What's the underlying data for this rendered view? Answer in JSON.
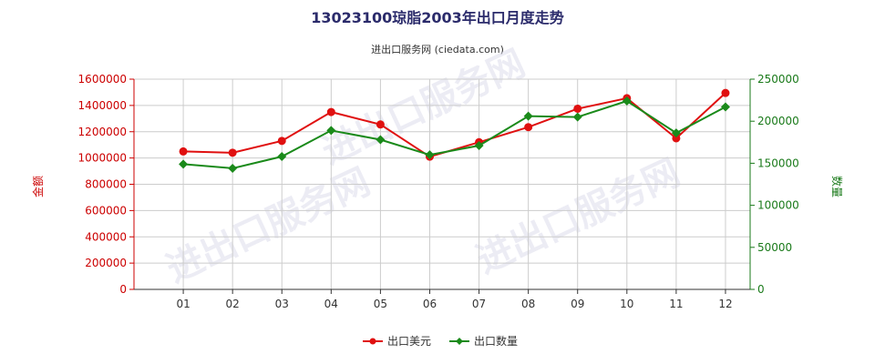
{
  "chart_data": {
    "type": "line",
    "title": "13023100琼脂2003年出口月度走势",
    "subtitle": "进出口服务网 (ciedata.com)",
    "categories": [
      "01",
      "02",
      "03",
      "04",
      "05",
      "06",
      "07",
      "08",
      "09",
      "10",
      "11",
      "12"
    ],
    "y_left_label": "金额",
    "y_right_label": "数量",
    "y_left_ticks": [
      "0",
      "200000",
      "400000",
      "600000",
      "800000",
      "1000000",
      "1200000",
      "1400000",
      "1600000"
    ],
    "y_right_ticks": [
      "0",
      "50000",
      "100000",
      "150000",
      "200000",
      "250000"
    ],
    "ylim_left": [
      0,
      1600000
    ],
    "ylim_right": [
      0,
      250000
    ],
    "grid": true,
    "legend_position": "bottom-center",
    "series": [
      {
        "name": "出口美元",
        "axis": "left",
        "color": "#e01010",
        "marker": "circle",
        "values": [
          1050000,
          1040000,
          1130000,
          1350000,
          1255000,
          1010000,
          1120000,
          1235000,
          1375000,
          1455000,
          1150000,
          1495000
        ]
      },
      {
        "name": "出口数量",
        "axis": "right",
        "color": "#1a8a1a",
        "marker": "diamond",
        "values": [
          149000,
          144000,
          158000,
          189000,
          178000,
          160000,
          171000,
          206000,
          205000,
          224000,
          186000,
          217000
        ]
      }
    ],
    "watermark": "进出口服务网"
  }
}
